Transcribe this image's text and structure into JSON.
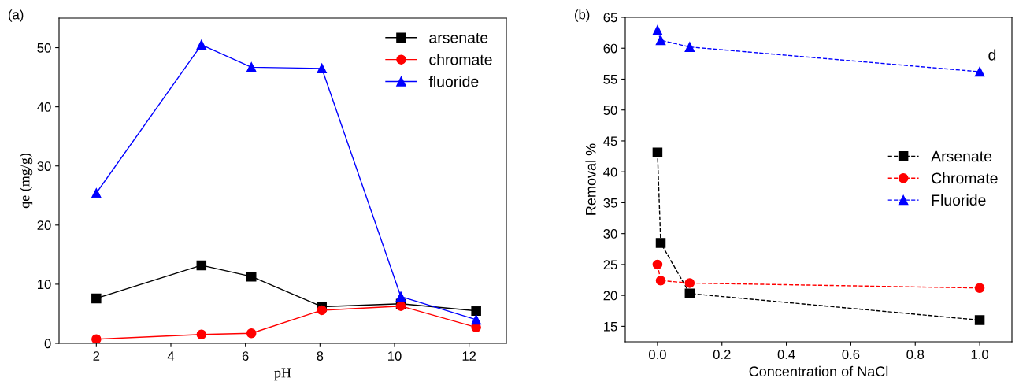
{
  "chart_data": [
    {
      "type": "line",
      "xlabel": "pH",
      "ylabel": "qe (mg/g)",
      "annotations": [
        "(a)"
      ],
      "xlim": [
        1,
        13
      ],
      "xticks": [
        2,
        4,
        6,
        8,
        10,
        12
      ],
      "ylim": [
        0,
        55
      ],
      "yticks": [
        0,
        10,
        20,
        30,
        40,
        50
      ],
      "grid": false,
      "legend": "top right",
      "line_style": "solid",
      "series": [
        {
          "name": "arsenate",
          "color": "#000000",
          "marker": "square",
          "x": [
            2,
            4.82,
            6.16,
            8.05,
            10.17,
            12.19
          ],
          "values": [
            7.6,
            13.2,
            11.3,
            6.2,
            6.7,
            5.5
          ]
        },
        {
          "name": "chromate",
          "color": "#ff0000",
          "marker": "circle",
          "x": [
            2,
            4.82,
            6.16,
            8.05,
            10.17,
            12.19
          ],
          "values": [
            0.7,
            1.5,
            1.7,
            5.6,
            6.3,
            2.7
          ]
        },
        {
          "name": "fluoride",
          "color": "#0000ff",
          "marker": "triangle",
          "x": [
            2,
            4.82,
            6.16,
            8.05,
            10.17,
            12.19
          ],
          "values": [
            25.4,
            50.5,
            46.7,
            46.5,
            7.9,
            4.0
          ]
        }
      ]
    },
    {
      "type": "line",
      "xlabel": "Concentration of NaCl",
      "ylabel": "Removal %",
      "annotations": [
        "(b)",
        "d"
      ],
      "xlim": [
        -0.1,
        1.1
      ],
      "xticks": [
        {
          "value": 0,
          "label": "0.0"
        },
        0.2,
        0.4,
        0.6,
        0.8,
        {
          "value": 1,
          "label": "1.0"
        }
      ],
      "ylim": [
        12.5,
        65
      ],
      "yticks": [
        15,
        20,
        25,
        30,
        35,
        40,
        45,
        50,
        55,
        60,
        65
      ],
      "grid": false,
      "legend": "right",
      "line_style": "dashed",
      "series": [
        {
          "name": "Arsenate",
          "color": "#000000",
          "marker": "square",
          "x": [
            0,
            0.01,
            0.1,
            1.0
          ],
          "values": [
            43.1,
            28.5,
            20.3,
            16.0
          ]
        },
        {
          "name": "Chromate",
          "color": "#ff0000",
          "marker": "circle",
          "x": [
            0,
            0.01,
            0.1,
            1.0
          ],
          "values": [
            25.0,
            22.4,
            22.0,
            21.2
          ]
        },
        {
          "name": "Fluoride",
          "color": "#0000ff",
          "marker": "triangle",
          "x": [
            0,
            0.01,
            0.1,
            1.0
          ],
          "values": [
            62.9,
            61.3,
            60.2,
            56.2
          ]
        }
      ]
    }
  ]
}
